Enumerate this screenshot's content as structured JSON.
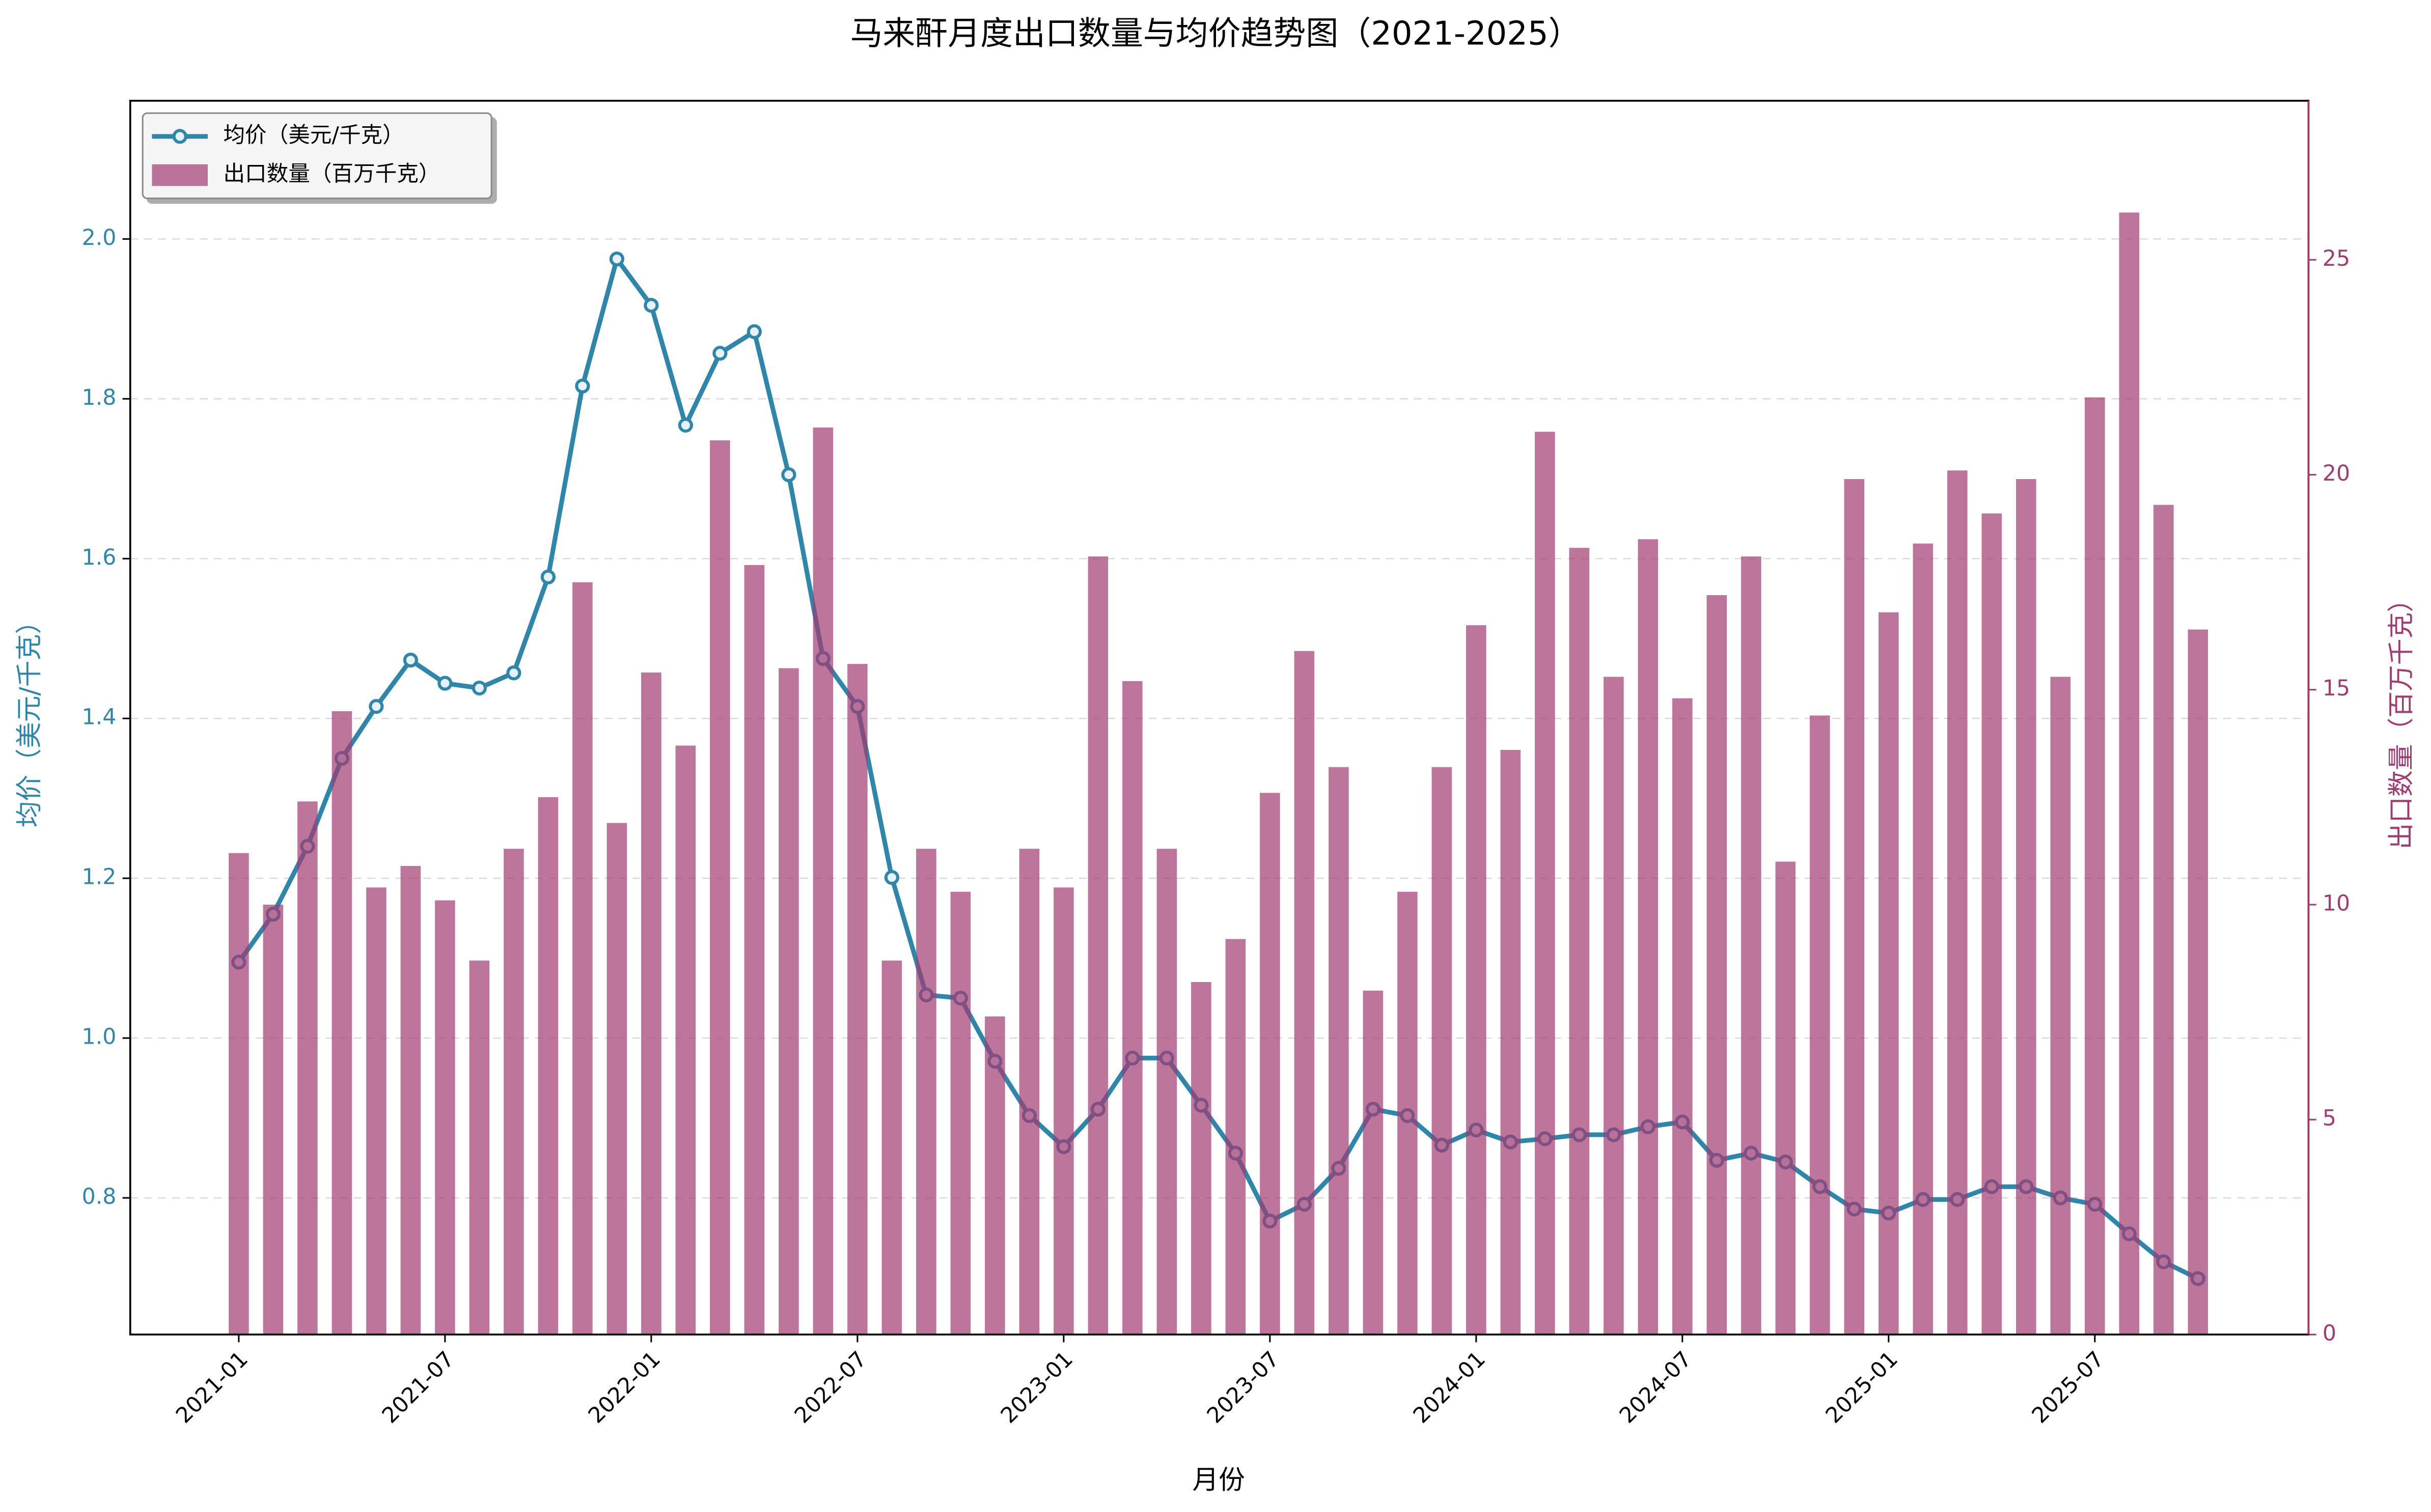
{
  "chart_data": {
    "type": "combo",
    "title": "马来酐月度出口数量与均价趋势图（2021-2025）",
    "xlabel": "月份",
    "ylabel": "均价（美元/千克）",
    "y2label": "出口数量（百万千克）",
    "categories": [
      "2021-01",
      null,
      null,
      null,
      null,
      null,
      "2021-07",
      null,
      null,
      null,
      null,
      null,
      "2022-01",
      null,
      null,
      null,
      null,
      null,
      "2022-07",
      null,
      null,
      null,
      null,
      null,
      "2023-01",
      null,
      null,
      null,
      null,
      null,
      "2023-07",
      null,
      null,
      null,
      null,
      null,
      "2024-01",
      null,
      null,
      null,
      null,
      null,
      "2024-07",
      null,
      null,
      null,
      null,
      null,
      "2025-01",
      null,
      null,
      null,
      null,
      null,
      "2025-07",
      null,
      null,
      null
    ],
    "series": [
      {
        "name": "均价（美元/千克）",
        "color": "#2E86AB",
        "kind": "line",
        "axis": "y",
        "values": [
          1.095,
          1.155,
          1.24,
          1.35,
          1.415,
          1.473,
          1.444,
          1.438,
          1.457,
          1.577,
          1.816,
          1.975,
          1.917,
          1.767,
          1.857,
          1.884,
          1.705,
          1.475,
          1.415,
          1.201,
          1.054,
          1.05,
          0.971,
          0.903,
          0.864,
          0.911,
          0.975,
          0.975,
          0.916,
          0.856,
          0.771,
          0.792,
          0.837,
          0.911,
          0.903,
          0.866,
          0.885,
          0.87,
          0.874,
          0.879,
          0.879,
          0.889,
          0.895,
          0.847,
          0.856,
          0.845,
          0.814,
          0.786,
          0.781,
          0.798,
          0.798,
          0.814,
          0.814,
          0.8,
          0.792,
          0.755,
          0.72,
          0.699
        ]
      },
      {
        "name": "出口数量（百万千克）",
        "color": "#A23B72",
        "kind": "bar",
        "axis": "y2",
        "values": [
          11.2,
          10.0,
          12.4,
          14.5,
          10.4,
          10.9,
          10.1,
          8.7,
          11.3,
          12.5,
          17.5,
          11.9,
          15.4,
          13.7,
          20.8,
          17.9,
          15.5,
          21.1,
          15.6,
          8.7,
          11.3,
          10.3,
          7.4,
          11.3,
          10.4,
          18.1,
          15.2,
          11.3,
          8.2,
          9.2,
          12.6,
          15.9,
          13.2,
          8.0,
          10.3,
          13.2,
          16.5,
          13.6,
          21.0,
          18.3,
          15.3,
          18.5,
          14.8,
          17.2,
          18.1,
          11.0,
          14.4,
          19.9,
          16.8,
          18.4,
          20.1,
          19.1,
          19.9,
          15.3,
          21.8,
          26.1,
          19.3,
          16.4
        ]
      }
    ],
    "ylim": [
      0.629,
      2.173
    ],
    "yticks": [
      0.8,
      {
        "value": 1,
        "label": "1.0"
      },
      1.2,
      1.4,
      1.6,
      1.8,
      {
        "value": 2,
        "label": "2.0"
      }
    ],
    "y2lim": [
      0,
      28.7
    ],
    "y2ticks": [
      0,
      5,
      10,
      15,
      20,
      25
    ],
    "grid": true,
    "legend": "upper left"
  }
}
